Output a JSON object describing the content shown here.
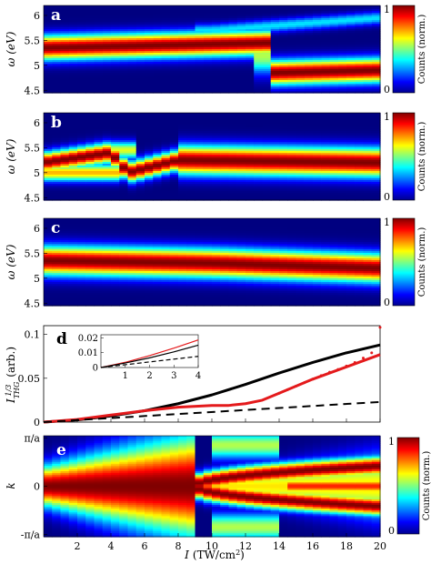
{
  "chart_data": [
    {
      "panel": "a",
      "type": "heatmap",
      "ylabel": "ω (eV)",
      "y_ticks": [
        "6",
        "5.5",
        "5",
        "4.5"
      ],
      "y_tick_values": [
        6,
        5.5,
        5,
        4.5
      ],
      "ylim": [
        4.45,
        6.2
      ],
      "xlim": [
        0,
        20
      ],
      "colorbar": {
        "label": "Counts (norm.)",
        "min_label": "0",
        "max_label": "1",
        "range": [
          0,
          1
        ]
      },
      "description_values": {
        "peak_center_eV": [
          [
            0,
            5.35
          ],
          [
            13.5,
            5.45
          ],
          [
            13.6,
            4.85
          ],
          [
            20,
            4.9
          ]
        ],
        "secondary_band_eV": [
          [
            10,
            5.7
          ],
          [
            20,
            5.95
          ]
        ]
      }
    },
    {
      "panel": "b",
      "type": "heatmap",
      "ylabel": "ω (eV)",
      "y_ticks": [
        "6",
        "5.5",
        "5",
        "4.5"
      ],
      "y_tick_values": [
        6,
        5.5,
        5,
        4.5
      ],
      "ylim": [
        4.45,
        6.2
      ],
      "xlim": [
        0,
        20
      ],
      "colorbar": {
        "label": "Counts (norm.)",
        "min_label": "0",
        "max_label": "1",
        "range": [
          0,
          1
        ]
      },
      "description_values": {
        "peak_center_eV": [
          [
            0,
            5.2
          ],
          [
            4,
            5.4
          ],
          [
            5,
            5.0
          ],
          [
            8,
            5.25
          ],
          [
            20,
            5.2
          ]
        ]
      }
    },
    {
      "panel": "c",
      "type": "heatmap",
      "ylabel": "ω (eV)",
      "y_ticks": [
        "6",
        "5.5",
        "5",
        "4.5"
      ],
      "y_tick_values": [
        6,
        5.5,
        5,
        4.5
      ],
      "ylim": [
        4.45,
        6.2
      ],
      "xlim": [
        0,
        20
      ],
      "colorbar": {
        "label": "Counts (norm.)",
        "min_label": "0",
        "max_label": "1",
        "range": [
          0,
          1
        ]
      },
      "description_values": {
        "peak_center_eV": [
          [
            0,
            5.35
          ],
          [
            10,
            5.3
          ],
          [
            20,
            5.2
          ]
        ]
      }
    },
    {
      "panel": "d",
      "type": "line",
      "ylabel": "I_THG^1/3 (arb.)",
      "ylabel_main": "I",
      "ylabel_sub": "THG",
      "ylabel_sup": "1/3",
      "ylabel_unit": "(arb.)",
      "xlim": [
        0,
        20
      ],
      "ylim": [
        0,
        0.11
      ],
      "y_ticks": [
        "0",
        "0.05",
        "0.1"
      ],
      "y_tick_values": [
        0,
        0.05,
        0.1
      ],
      "series": [
        {
          "color": "#000000",
          "style": "solid",
          "x": [
            0,
            2,
            4,
            6,
            8,
            10,
            12,
            14,
            16,
            18,
            20
          ],
          "y": [
            0,
            0.0025,
            0.007,
            0.013,
            0.021,
            0.031,
            0.043,
            0.056,
            0.068,
            0.079,
            0.088
          ]
        },
        {
          "color": "#e41a1c",
          "style": "solid",
          "x": [
            0,
            2,
            4,
            6,
            8,
            10,
            11,
            12,
            13,
            14,
            15,
            16,
            17,
            18,
            19,
            20
          ],
          "y": [
            0,
            0.003,
            0.008,
            0.013,
            0.017,
            0.019,
            0.019,
            0.021,
            0.025,
            0.033,
            0.041,
            0.049,
            0.056,
            0.063,
            0.07,
            0.077
          ]
        },
        {
          "color": "#000000",
          "style": "dashed",
          "x": [
            0,
            20
          ],
          "y": [
            0,
            0.023
          ]
        },
        {
          "color": "#e41a1c",
          "style": "dotted",
          "x": [
            14,
            14.5,
            15,
            15.5,
            16,
            16.5,
            17,
            17.5,
            18,
            18.5,
            19,
            19.5,
            20
          ],
          "y": [
            0.033,
            0.037,
            0.041,
            0.045,
            0.049,
            0.053,
            0.057,
            0.06,
            0.064,
            0.068,
            0.073,
            0.079,
            0.108
          ]
        }
      ],
      "inset": {
        "xlim": [
          0,
          4
        ],
        "ylim": [
          0,
          0.022
        ],
        "x_ticks": [
          "1",
          "2",
          "3",
          "4"
        ],
        "x_tick_values": [
          1,
          2,
          3,
          4
        ],
        "y_ticks": [
          "0",
          "0.01",
          "0.02"
        ],
        "y_tick_values": [
          0,
          0.01,
          0.02
        ],
        "series": [
          {
            "color": "#e41a1c",
            "style": "solid",
            "x": [
              0,
              1,
              2,
              3,
              4
            ],
            "y": [
              0,
              0.0035,
              0.008,
              0.013,
              0.0185
            ]
          },
          {
            "color": "#000000",
            "style": "solid",
            "x": [
              0,
              1,
              2,
              3,
              4
            ],
            "y": [
              0,
              0.003,
              0.0065,
              0.0105,
              0.015
            ]
          },
          {
            "color": "#000000",
            "style": "dashed",
            "x": [
              0,
              4
            ],
            "y": [
              0,
              0.0075
            ]
          }
        ]
      }
    },
    {
      "panel": "e",
      "type": "heatmap",
      "ylabel": "k",
      "xlabel_main": "I",
      "xlabel_unit": "(TW/cm",
      "xlabel_sup": "2",
      "xlabel_close": ")",
      "y_ticks": [
        "π/a",
        "0",
        "-π/a"
      ],
      "y_tick_values": [
        1,
        0,
        -1
      ],
      "ylim": [
        -1.05,
        1.05
      ],
      "xlim": [
        0,
        20
      ],
      "x_ticks": [
        "2",
        "4",
        "6",
        "8",
        "10",
        "12",
        "14",
        "16",
        "18",
        "20"
      ],
      "x_tick_values": [
        2,
        4,
        6,
        8,
        10,
        12,
        14,
        16,
        18,
        20
      ],
      "colorbar": {
        "label": "Counts (norm.)",
        "min_label": "0",
        "max_label": "1",
        "range": [
          0,
          1
        ]
      },
      "description_values": {
        "split_onset_TW": 9,
        "branch_k_at_20TW": [
          0.42,
          -0.42
        ]
      }
    }
  ]
}
